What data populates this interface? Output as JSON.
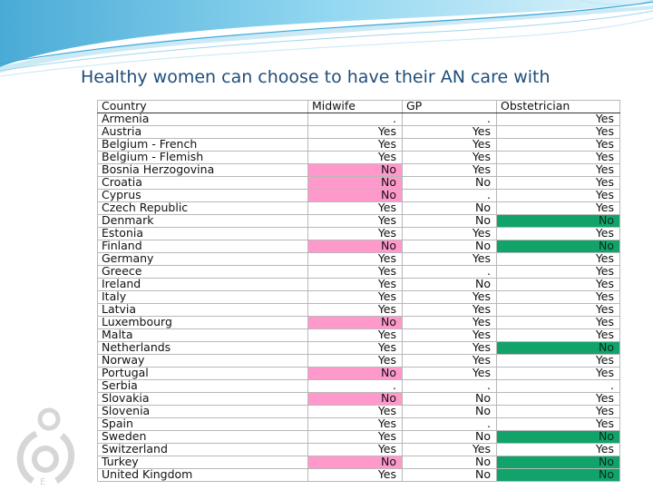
{
  "title": "Healthy women can choose to have their AN care with",
  "table": {
    "headers": [
      "Country",
      "Midwife",
      "GP",
      "Obstetrician"
    ],
    "rows": [
      {
        "country": "Armenia",
        "midwife": ".",
        "gp": ".",
        "obstetrician": "Yes"
      },
      {
        "country": "Austria",
        "midwife": "Yes",
        "gp": "Yes",
        "obstetrician": "Yes"
      },
      {
        "country": "Belgium - French",
        "midwife": "Yes",
        "gp": "Yes",
        "obstetrician": "Yes"
      },
      {
        "country": "Belgium - Flemish",
        "midwife": "Yes",
        "gp": "Yes",
        "obstetrician": "Yes"
      },
      {
        "country": "Bosnia Herzogovina",
        "midwife": "No",
        "gp": "Yes",
        "obstetrician": "Yes"
      },
      {
        "country": "Croatia",
        "midwife": "No",
        "gp": "No",
        "obstetrician": "Yes"
      },
      {
        "country": "Cyprus",
        "midwife": "No",
        "gp": ".",
        "obstetrician": "Yes"
      },
      {
        "country": "Czech Republic",
        "midwife": "Yes",
        "gp": "No",
        "obstetrician": "Yes"
      },
      {
        "country": "Denmark",
        "midwife": "Yes",
        "gp": "No",
        "obstetrician": "No"
      },
      {
        "country": "Estonia",
        "midwife": "Yes",
        "gp": "Yes",
        "obstetrician": "Yes"
      },
      {
        "country": "Finland",
        "midwife": "No",
        "gp": "No",
        "obstetrician": "No"
      },
      {
        "country": "Germany",
        "midwife": "Yes",
        "gp": "Yes",
        "obstetrician": "Yes"
      },
      {
        "country": "Greece",
        "midwife": "Yes",
        "gp": ".",
        "obstetrician": "Yes"
      },
      {
        "country": "Ireland",
        "midwife": "Yes",
        "gp": "No",
        "obstetrician": "Yes"
      },
      {
        "country": "Italy",
        "midwife": "Yes",
        "gp": "Yes",
        "obstetrician": "Yes"
      },
      {
        "country": "Latvia",
        "midwife": "Yes",
        "gp": "Yes",
        "obstetrician": "Yes"
      },
      {
        "country": "Luxembourg",
        "midwife": "No",
        "gp": "Yes",
        "obstetrician": "Yes"
      },
      {
        "country": "Malta",
        "midwife": "Yes",
        "gp": "Yes",
        "obstetrician": "Yes"
      },
      {
        "country": "Netherlands",
        "midwife": "Yes",
        "gp": "Yes",
        "obstetrician": "No"
      },
      {
        "country": "Norway",
        "midwife": "Yes",
        "gp": "Yes",
        "obstetrician": "Yes"
      },
      {
        "country": "Portugal",
        "midwife": "No",
        "gp": "Yes",
        "obstetrician": "Yes"
      },
      {
        "country": "Serbia",
        "midwife": ".",
        "gp": ".",
        "obstetrician": "."
      },
      {
        "country": "Slovakia",
        "midwife": "No",
        "gp": "No",
        "obstetrician": "Yes"
      },
      {
        "country": "Slovenia",
        "midwife": "Yes",
        "gp": "No",
        "obstetrician": "Yes"
      },
      {
        "country": "Spain",
        "midwife": "Yes",
        "gp": ".",
        "obstetrician": "Yes"
      },
      {
        "country": "Sweden",
        "midwife": "Yes",
        "gp": "No",
        "obstetrician": "No"
      },
      {
        "country": "Switzerland",
        "midwife": "Yes",
        "gp": "Yes",
        "obstetrician": "Yes"
      },
      {
        "country": "Turkey",
        "midwife": "No",
        "gp": "No",
        "obstetrician": "No"
      },
      {
        "country": "United Kingdom",
        "midwife": "Yes",
        "gp": "No",
        "obstetrician": "No"
      }
    ]
  },
  "colors": {
    "midwife_no_highlight": "#ff99cc",
    "obstetrician_no_highlight": "#11a36a",
    "title": "#1f4e79",
    "swoosh": "#4fb3d9"
  },
  "decorations": {
    "header_graphic": "blue-swoosh",
    "corner_logo": "mother-child-icon"
  }
}
